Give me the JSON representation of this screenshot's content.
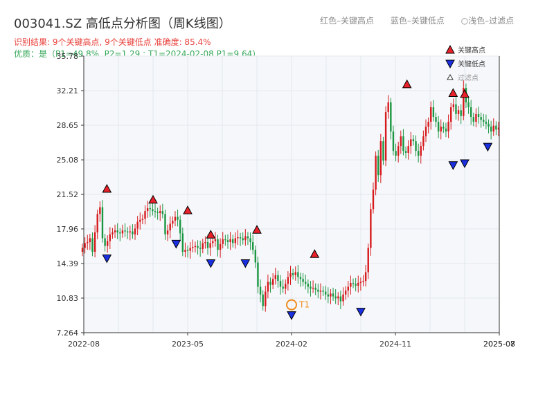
{
  "title": "003041.SZ 高低点分析图（周K线图）",
  "header_legend": [
    "红色–关键高点",
    "蓝色–关键低点",
    "○浅色–过滤点"
  ],
  "subtitle_line1": "识别结果: 9个关键高点, 9个关键低点  准确度: 85.4%",
  "subtitle_line2": "优质：是（P1=49.8%, P2=1.29 ; T1=2024-02-08 P1=9.64）",
  "colors": {
    "up": "#d7191c",
    "down": "#1a9641",
    "high_marker": "#e8212a",
    "low_marker": "#1a2fe0",
    "t1_marker": "#f08c1e",
    "grid": "#e4e8ee",
    "plot_bg": "#f5f7fa"
  },
  "chart_data": {
    "type": "candlestick",
    "ylim": [
      7.264,
      35.78
    ],
    "y_ticks": [
      "7.264",
      "10.83",
      "14.39",
      "17.96",
      "21.52",
      "25.08",
      "28.65",
      "32.21",
      "35.78"
    ],
    "x_ticks": [
      "2022-08",
      "2023-05",
      "2024-02",
      "2024-11",
      "2025-08",
      "2025-07"
    ],
    "legend": [
      {
        "label": "关键高点",
        "icon": "red-triangle-up"
      },
      {
        "label": "关键低点",
        "icon": "blue-triangle-down"
      },
      {
        "label": "过滤点",
        "icon": "hollow-triangle-up"
      }
    ],
    "key_highs": [
      {
        "date": "2022-10",
        "value": 21.52
      },
      {
        "date": "2023-02",
        "value": 20.4
      },
      {
        "date": "2023-05",
        "value": 19.3
      },
      {
        "date": "2023-07",
        "value": 16.8
      },
      {
        "date": "2023-11",
        "value": 17.3
      },
      {
        "date": "2024-04",
        "value": 14.8
      },
      {
        "date": "2024-12",
        "value": 32.3
      },
      {
        "date": "2025-04",
        "value": 31.4
      },
      {
        "date": "2025-05",
        "value": 31.3
      }
    ],
    "key_lows": [
      {
        "date": "2022-10",
        "value": 15.5
      },
      {
        "date": "2023-04",
        "value": 17.0
      },
      {
        "date": "2023-07",
        "value": 15.0
      },
      {
        "date": "2023-10",
        "value": 15.0
      },
      {
        "date": "2024-02",
        "value": 9.64
      },
      {
        "date": "2024-08",
        "value": 10.0
      },
      {
        "date": "2025-04",
        "value": 25.1
      },
      {
        "date": "2025-05",
        "value": 25.3
      },
      {
        "date": "2025-07",
        "value": 27.0
      }
    ],
    "annotation": {
      "label": "T1",
      "date": "2024-02",
      "value": 9.64
    },
    "weekly_close": [
      16.0,
      16.5,
      16.6,
      17.0,
      15.6,
      17.6,
      19.5,
      20.2,
      17.0,
      16.2,
      16.7,
      17.4,
      17.6,
      17.8,
      17.6,
      17.5,
      17.8,
      17.7,
      17.6,
      17.7,
      17.4,
      18.0,
      18.7,
      18.9,
      19.0,
      19.8,
      20.1,
      20.0,
      19.8,
      19.7,
      19.6,
      19.8,
      19.5,
      17.4,
      17.8,
      18.5,
      18.8,
      19.2,
      18.9,
      17.5,
      15.6,
      15.8,
      15.7,
      16.0,
      16.1,
      16.2,
      16.0,
      15.9,
      16.5,
      16.6,
      16.0,
      16.5,
      16.7,
      16.9,
      15.8,
      16.4,
      16.9,
      16.8,
      16.6,
      16.9,
      16.5,
      17.0,
      17.1,
      17.0,
      16.8,
      17.2,
      17.0,
      16.6,
      15.8,
      14.5,
      12.0,
      11.2,
      10.0,
      11.5,
      12.5,
      12.2,
      12.8,
      13.2,
      12.6,
      12.0,
      11.8,
      12.3,
      13.0,
      13.4,
      13.2,
      13.5,
      13.0,
      12.8,
      12.5,
      12.3,
      12.0,
      11.8,
      11.9,
      11.7,
      11.5,
      11.6,
      11.5,
      11.2,
      11.0,
      11.3,
      11.0,
      10.8,
      11.0,
      10.5,
      11.2,
      11.6,
      12.0,
      12.4,
      12.3,
      12.1,
      12.4,
      12.5,
      12.6,
      13.5,
      16.0,
      20.0,
      22.0,
      25.5,
      23.5,
      27.0,
      25.0,
      30.0,
      31.0,
      28.0,
      26.0,
      25.5,
      26.5,
      27.5,
      26.0,
      25.8,
      26.5,
      27.2,
      27.0,
      26.0,
      25.5,
      26.5,
      27.5,
      28.5,
      29.0,
      30.5,
      29.5,
      29.0,
      28.0,
      28.5,
      28.3,
      28.0,
      29.0,
      30.5,
      30.8,
      29.8,
      30.2,
      29.6,
      32.5,
      31.0,
      30.5,
      29.5,
      29.0,
      29.8,
      29.5,
      29.2,
      29.0,
      28.8,
      28.5,
      28.0,
      28.6,
      28.2,
      28.4
    ]
  }
}
